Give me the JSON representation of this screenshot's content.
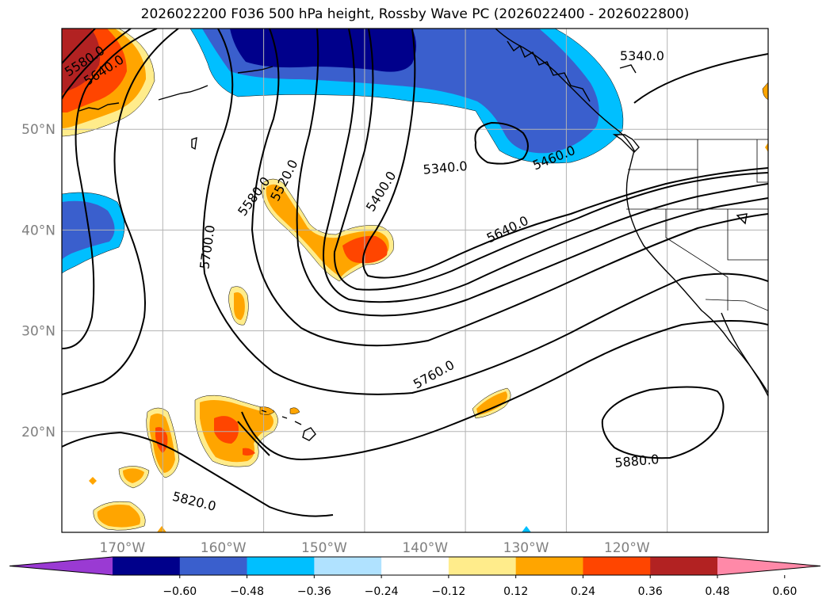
{
  "title": "2026022200 F036 500 hPa height, Rossby Wave PC (2026022400 - 2026022800)",
  "map": {
    "lon_ticks": [
      {
        "lon": -170,
        "label": "170°W"
      },
      {
        "lon": -160,
        "label": "160°W"
      },
      {
        "lon": -150,
        "label": "150°W"
      },
      {
        "lon": -140,
        "label": "140°W"
      },
      {
        "lon": -130,
        "label": "130°W"
      },
      {
        "lon": -120,
        "label": "120°W"
      }
    ],
    "lat_ticks": [
      {
        "lat": 20,
        "label": "20°N"
      },
      {
        "lat": 30,
        "label": "30°N"
      },
      {
        "lat": 40,
        "label": "40°N"
      },
      {
        "lat": 50,
        "label": "50°N"
      }
    ],
    "extent": {
      "lon_min": -176,
      "lon_max": -106,
      "lat_min": 10,
      "lat_max": 60
    },
    "grid": true
  },
  "contour_labels": [
    {
      "text": "5580.0",
      "lon": -173.7,
      "lat": 56.7,
      "rot": -33
    },
    {
      "text": "5640.0",
      "lon": -171.8,
      "lat": 55.8,
      "rot": -33
    },
    {
      "text": "5340.0",
      "lon": -118.5,
      "lat": 57.2,
      "rot": 0
    },
    {
      "text": "5340.0",
      "lon": -138.0,
      "lat": 46.1,
      "rot": -5
    },
    {
      "text": "5460.0",
      "lon": -127.2,
      "lat": 47.1,
      "rot": -22
    },
    {
      "text": "5400.0",
      "lon": -144.3,
      "lat": 43.8,
      "rot": -58
    },
    {
      "text": "5520.0",
      "lon": -153.9,
      "lat": 44.9,
      "rot": -63
    },
    {
      "text": "5580.0",
      "lon": -156.9,
      "lat": 43.3,
      "rot": -54
    },
    {
      "text": "5700.0",
      "lon": -161.5,
      "lat": 38.3,
      "rot": -82
    },
    {
      "text": "5640.0",
      "lon": -131.8,
      "lat": 40.0,
      "rot": -26
    },
    {
      "text": "5760.0",
      "lon": -139.1,
      "lat": 25.6,
      "rot": -29
    },
    {
      "text": "5880.0",
      "lon": -119.0,
      "lat": 17.0,
      "rot": -5
    },
    {
      "text": "5820.0",
      "lon": -162.9,
      "lat": 13.0,
      "rot": 14
    }
  ],
  "colorbar": {
    "boundaries": [
      -0.6,
      -0.48,
      -0.36,
      -0.24,
      -0.12,
      0.12,
      0.24,
      0.36,
      0.48,
      0.6
    ],
    "colors": [
      "#9a3ad3",
      "#00008b",
      "#3a5fcd",
      "#00bfff",
      "#b0e2ff",
      "#ffffff",
      "#ffec8b",
      "#ffa500",
      "#ff4500",
      "#b22222",
      "#ff89a8"
    ],
    "tick_labels": [
      "−0.60",
      "−0.48",
      "−0.36",
      "−0.24",
      "−0.12",
      "0.12",
      "0.24",
      "0.36",
      "0.48",
      "0.60"
    ]
  }
}
